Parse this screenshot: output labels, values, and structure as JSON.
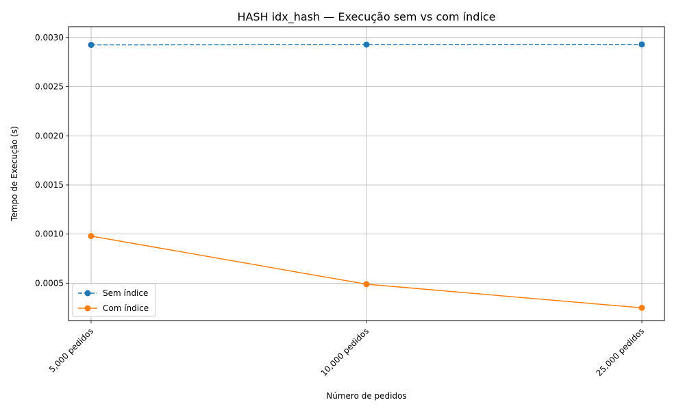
{
  "chart_data": {
    "type": "line",
    "title": "HASH idx_hash — Execução sem vs com índice",
    "xlabel": "Número de pedidos",
    "ylabel": "Tempo de Execução (s)",
    "categories": [
      "5,000 pedidos",
      "10,000 pedidos",
      "25,000 pedidos"
    ],
    "ylim": [
      0.00012,
      0.00311
    ],
    "yticks": [
      0.0005,
      0.001,
      0.0015,
      0.002,
      0.0025,
      0.003
    ],
    "ytick_labels": [
      "0.0005",
      "0.0010",
      "0.0015",
      "0.0020",
      "0.0025",
      "0.0030"
    ],
    "grid": true,
    "legend_position": "lower-left",
    "series": [
      {
        "name": "Sem índice",
        "values": [
          0.002925,
          0.002928,
          0.00293
        ],
        "color": "#1f77b4",
        "linestyle": "dashed",
        "marker": "circle"
      },
      {
        "name": "Com índice",
        "values": [
          0.00098,
          0.00049,
          0.00025
        ],
        "color": "#ff7f0e",
        "linestyle": "solid",
        "marker": "circle"
      }
    ]
  }
}
